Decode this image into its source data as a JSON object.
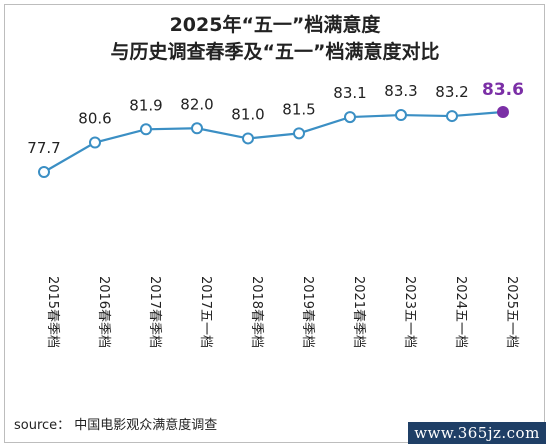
{
  "title_line1": "2025年“五一”档满意度",
  "title_line2": "与历史调查春季及“五一”档满意度对比",
  "source": "source：   中国电影观众满意度调查",
  "watermark": "www.365jz.com",
  "colors": {
    "line": "#3b8fc4",
    "point": "#3b8fc4",
    "highlight": "#7b2fa6"
  },
  "chart_data": {
    "type": "line",
    "title": "2025年“五一”档满意度 与历史调查春季及“五一”档满意度对比",
    "categories": [
      "2015春季档",
      "2016春季档",
      "2017春季档",
      "2017五一档",
      "2018春季档",
      "2019春季档",
      "2021春季档",
      "2023五一档",
      "2024五一档",
      "2025五一档"
    ],
    "values": [
      77.7,
      80.6,
      81.9,
      82.0,
      81.0,
      81.5,
      83.1,
      83.3,
      83.2,
      83.6
    ],
    "highlight_index": 9,
    "ylim": [
      76.3,
      85.0
    ],
    "grid": false,
    "legend": "none",
    "xlabel": "",
    "ylabel": ""
  }
}
